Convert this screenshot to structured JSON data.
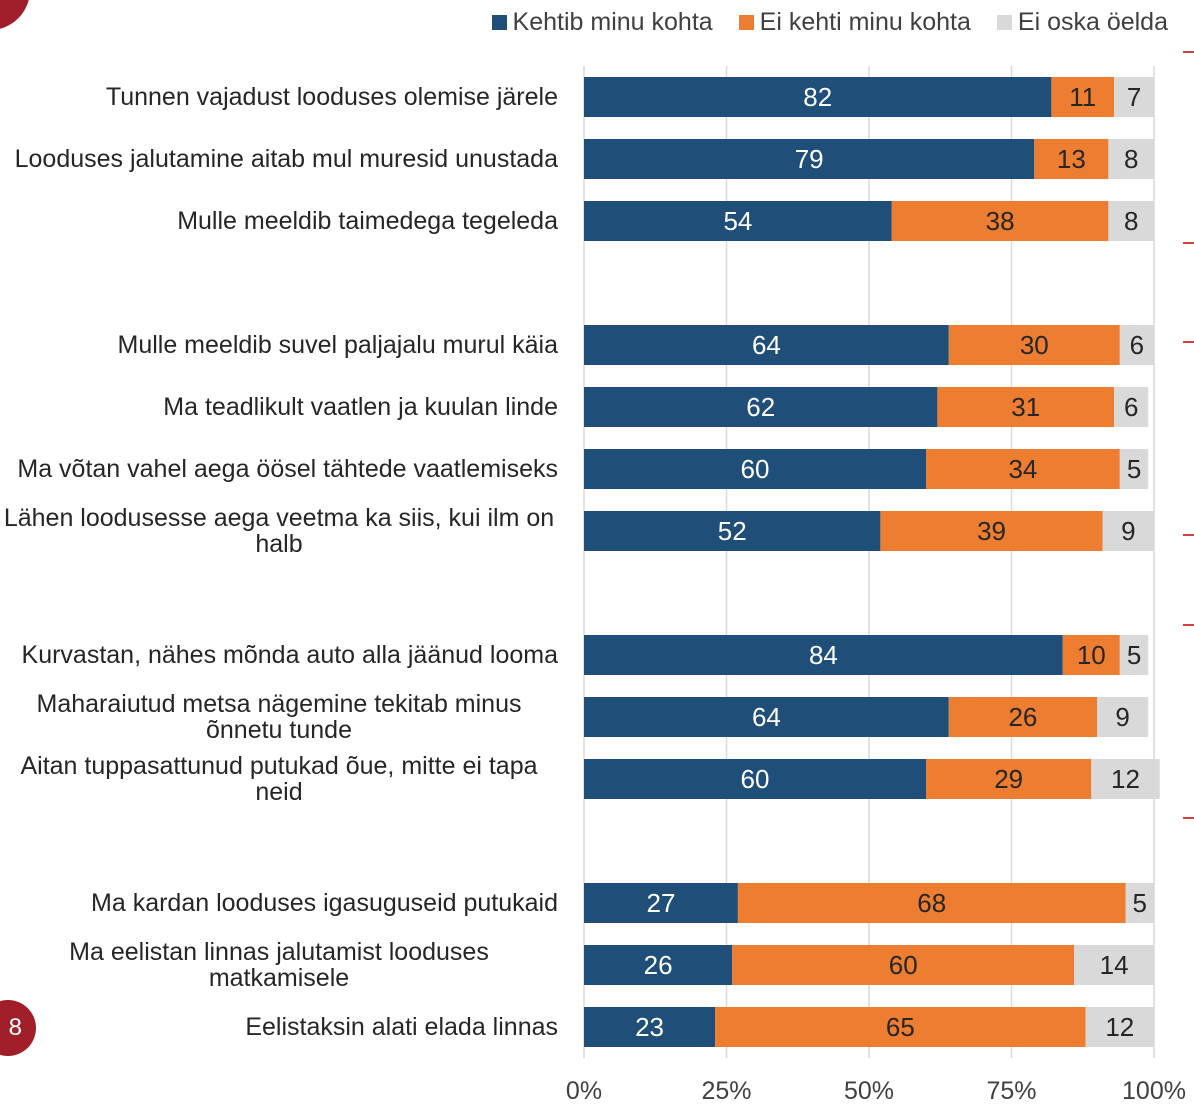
{
  "page_number": "8",
  "chart_data": {
    "type": "stacked_barh",
    "categories": [
      "Tunnen vajadust looduses olemise järele",
      "Looduses jalutamine aitab mul muresid unustada",
      "Mulle meeldib taimedega tegeleda",
      null,
      "Mulle meeldib suvel paljajalu murul käia",
      "Ma teadlikult vaatlen ja kuulan linde",
      "Ma võtan vahel aega öösel tähtede vaatlemiseks",
      "Lähen loodusesse aega veetma ka siis, kui ilm on halb",
      null,
      "Kurvastan, nähes mõnda auto alla jäänud looma",
      "Maharaiutud metsa nägemine tekitab minus õnnetu tunde",
      "Aitan tuppasattunud putukad õue, mitte ei tapa neid",
      null,
      "Ma kardan looduses igasuguseid putukaid",
      "Ma eelistan linnas jalutamist looduses matkamisele",
      "Eelistaksin alati elada linnas"
    ],
    "series": [
      {
        "name": "Kehtib minu kohta",
        "color": "#1f4e79",
        "values": [
          82,
          79,
          54,
          null,
          64,
          62,
          60,
          52,
          null,
          84,
          64,
          60,
          null,
          27,
          26,
          23
        ]
      },
      {
        "name": "Ei kehti minu kohta",
        "color": "#ed7d31",
        "values": [
          11,
          13,
          38,
          null,
          30,
          31,
          34,
          39,
          null,
          10,
          26,
          29,
          null,
          68,
          60,
          65
        ]
      },
      {
        "name": "Ei oska öelda",
        "color": "#d9d9d9",
        "values": [
          7,
          8,
          8,
          null,
          6,
          6,
          5,
          9,
          null,
          5,
          9,
          12,
          null,
          5,
          14,
          12
        ]
      }
    ],
    "xlim": [
      0,
      100
    ],
    "xticks": [
      {
        "value": 0,
        "label": "0%"
      },
      {
        "value": 25,
        "label": "25%"
      },
      {
        "value": 50,
        "label": "50%"
      },
      {
        "value": 75,
        "label": "75%"
      },
      {
        "value": 100,
        "label": "100%"
      }
    ],
    "grid": true,
    "legend": "top"
  }
}
